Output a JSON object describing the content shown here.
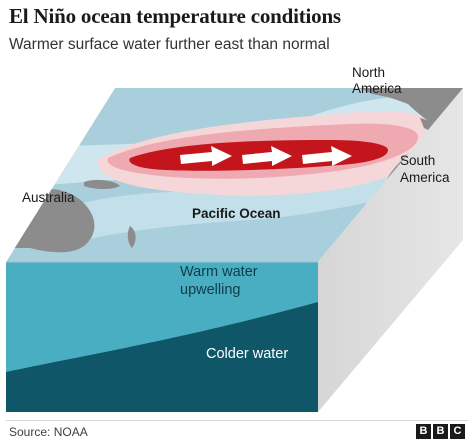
{
  "header": {
    "title": "El Niño ocean temperature conditions",
    "subtitle": "Warmer surface water further east than normal"
  },
  "labels": {
    "north_america": [
      "North",
      "America"
    ],
    "south_america": [
      "South",
      "America"
    ],
    "australia": "Australia",
    "pacific_ocean": "Pacific Ocean",
    "warm_upwelling": [
      "Warm water",
      "upwelling"
    ],
    "colder_water": "Colder water"
  },
  "footer": {
    "source": "Source: NOAA",
    "logo": [
      "B",
      "B",
      "C"
    ]
  },
  "colors": {
    "ocean_surface": "#a9cfdc",
    "ocean_light_band": "#cfe6ee",
    "warm_light": "#f6d7d9",
    "warm_mid": "#eeaab0",
    "warm_core": "#c4151c",
    "land": "#8c8c8c",
    "side_face": "#e0e0e0",
    "warm_layer": "#4aaec3",
    "cold_layer": "#0f5668",
    "arrow": "#ffffff"
  },
  "icons": {
    "current_arrow": "right-arrow-icon",
    "brand_logo": "bbc-logo-icon"
  }
}
